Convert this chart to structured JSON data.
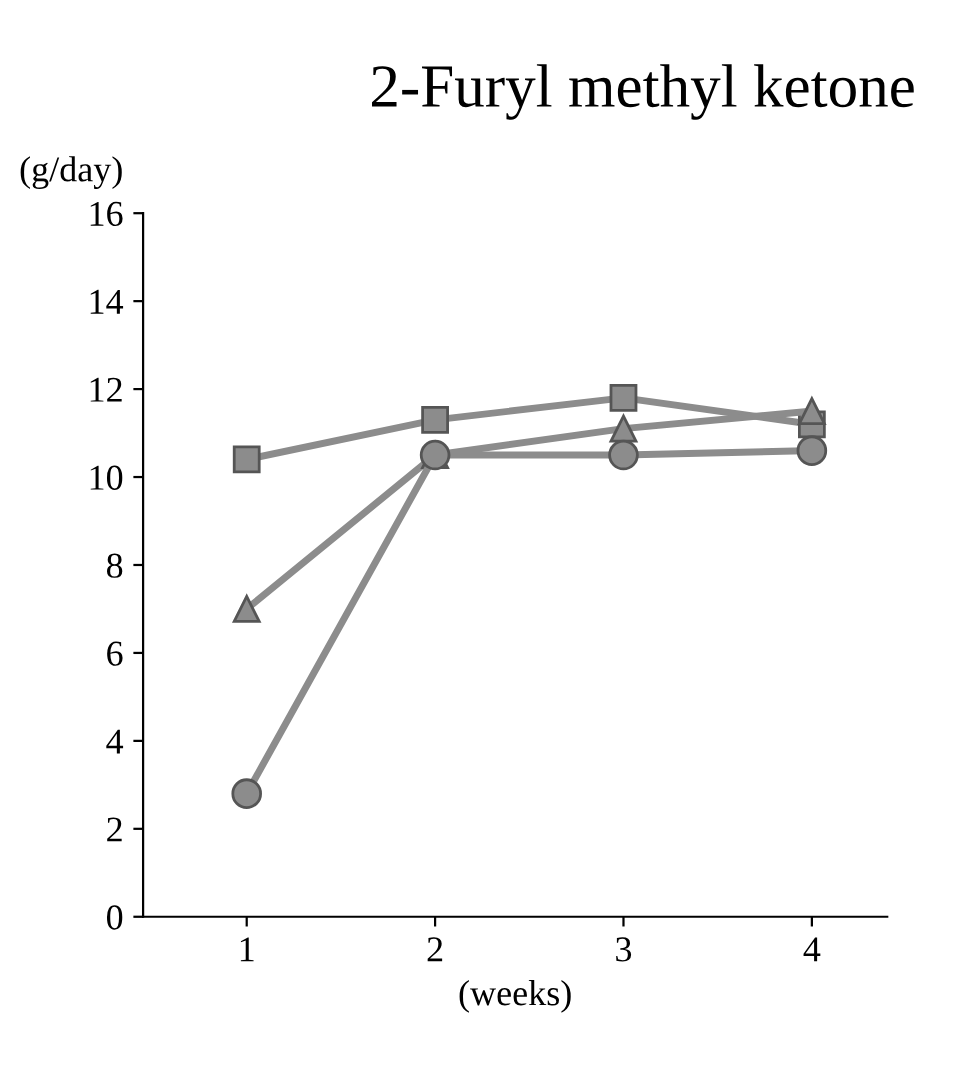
{
  "chart_data": {
    "type": "line",
    "title": "2-Furyl methyl ketone",
    "ylabel": "(g/day)",
    "xlabel": "(weeks)",
    "categories": [
      "1",
      "2",
      "3",
      "4"
    ],
    "series": [
      {
        "color": "#8c8c8c",
        "marker": "square",
        "values": [
          10.4,
          11.3,
          11.8,
          11.2
        ]
      },
      {
        "color": "#8c8c8c",
        "marker": "triangle",
        "values": [
          7.0,
          10.5,
          11.1,
          11.5
        ]
      },
      {
        "color": "#8c8c8c",
        "marker": "circle",
        "values": [
          2.8,
          10.5,
          10.5,
          10.6
        ]
      }
    ],
    "ylim": [
      0,
      16
    ],
    "yticks": [
      0,
      2,
      4,
      6,
      8,
      10,
      12,
      14,
      16
    ],
    "grid": false,
    "legend": false,
    "line_style": "solid"
  }
}
